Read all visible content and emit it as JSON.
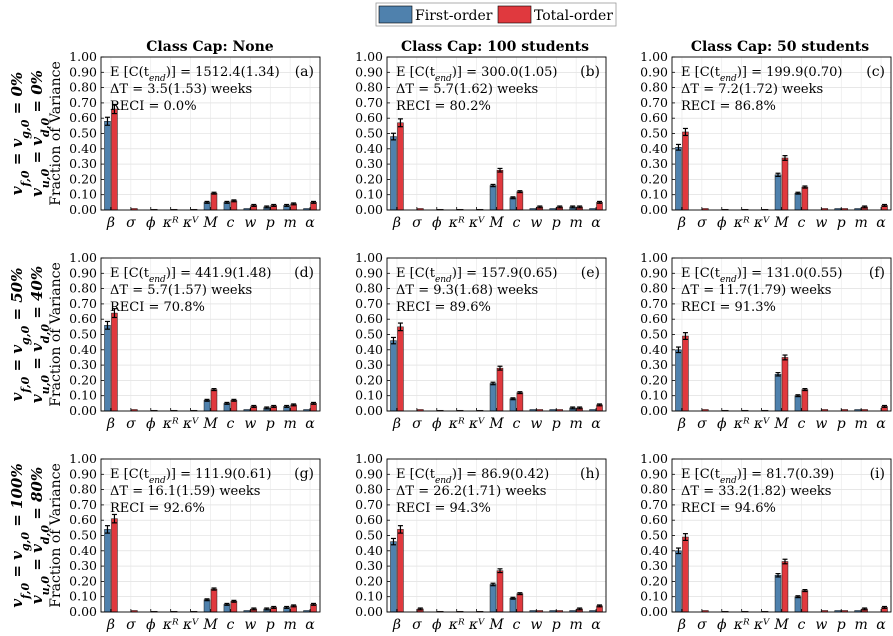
{
  "legend": {
    "placement": "top-center",
    "entries": [
      {
        "label": "First-order",
        "color": "#4f81ad"
      },
      {
        "label": "Total-order",
        "color": "#e0393e"
      }
    ]
  },
  "columns": [
    "Class Cap: None",
    "Class Cap: 100 students",
    "Class Cap: 50 students"
  ],
  "rows": [
    {
      "line1": "v_{f,0} = v_{g,0} = 0%",
      "line2": "v_{u,0} = v_{d,0} = 0%"
    },
    {
      "line1": "v_{f,0} = v_{g,0} = 50%",
      "line2": "v_{u,0} = v_{d,0} = 40%"
    },
    {
      "line1": "v_{f,0} = v_{g,0} = 100%",
      "line2": "v_{u,0} = v_{d,0} = 80%"
    }
  ],
  "ylabel": "Fraction of Variance",
  "yticks": [
    "0.00",
    "0.10",
    "0.20",
    "0.30",
    "0.40",
    "0.50",
    "0.60",
    "0.70",
    "0.80",
    "0.90",
    "1.00"
  ],
  "chart_data": {
    "type": "bar",
    "grid": true,
    "ylim": [
      0,
      1
    ],
    "categories": [
      "β",
      "σ",
      "ϕ",
      "κᴿ",
      "κⱽ",
      "M",
      "c",
      "w",
      "p",
      "m",
      "α"
    ],
    "panels": [
      {
        "tag": "(a)",
        "e_text": "E [C(t_end)] = 1512.4(1.34)",
        "dt_text": "ΔT = 3.5(1.53) weeks",
        "reci_text": "RECI = 0.0%",
        "first": [
          0.58,
          0,
          0,
          0,
          0,
          0.05,
          0.05,
          0.01,
          0.02,
          0.03,
          0.01
        ],
        "total": [
          0.66,
          0.01,
          0.005,
          0.005,
          0.005,
          0.11,
          0.06,
          0.03,
          0.03,
          0.04,
          0.05
        ]
      },
      {
        "tag": "(b)",
        "e_text": "E [C(t_end)] = 300.0(1.05)",
        "dt_text": "ΔT = 5.7(1.62) weeks",
        "reci_text": "RECI = 80.2%",
        "first": [
          0.48,
          0,
          0,
          0,
          0,
          0.16,
          0.08,
          0.01,
          0.01,
          0.02,
          0.01
        ],
        "total": [
          0.57,
          0.01,
          0.005,
          0.005,
          0.005,
          0.26,
          0.12,
          0.02,
          0.02,
          0.02,
          0.05
        ]
      },
      {
        "tag": "(c)",
        "e_text": "E [C(t_end)] = 199.9(0.70)",
        "dt_text": "ΔT = 7.2(1.72) weeks",
        "reci_text": "RECI = 86.8%",
        "first": [
          0.41,
          0,
          0,
          0,
          0,
          0.23,
          0.11,
          0,
          0.01,
          0.01,
          0
        ],
        "total": [
          0.51,
          0.01,
          0.005,
          0.005,
          0.005,
          0.34,
          0.15,
          0.01,
          0.01,
          0.02,
          0.03
        ]
      },
      {
        "tag": "(d)",
        "e_text": "E [C(t_end)] = 441.9(1.48)",
        "dt_text": "ΔT = 5.7(1.57) weeks",
        "reci_text": "RECI = 70.8%",
        "first": [
          0.56,
          0,
          0,
          0,
          0,
          0.07,
          0.05,
          0.01,
          0.02,
          0.03,
          0.01
        ],
        "total": [
          0.64,
          0.01,
          0.005,
          0.005,
          0.005,
          0.14,
          0.07,
          0.03,
          0.03,
          0.04,
          0.05
        ]
      },
      {
        "tag": "(e)",
        "e_text": "E [C(t_end)] = 157.9(0.65)",
        "dt_text": "ΔT = 9.3(1.68) weeks",
        "reci_text": "RECI = 89.6%",
        "first": [
          0.46,
          0,
          0,
          0,
          0,
          0.18,
          0.08,
          0.01,
          0.01,
          0.02,
          0.01
        ],
        "total": [
          0.55,
          0.01,
          0.005,
          0.005,
          0.005,
          0.28,
          0.12,
          0.01,
          0.01,
          0.02,
          0.04
        ]
      },
      {
        "tag": "(f)",
        "e_text": "E [C(t_end)] = 131.0(0.55)",
        "dt_text": "ΔT = 11.7(1.79) weeks",
        "reci_text": "RECI = 91.3%",
        "first": [
          0.4,
          0,
          0,
          0,
          0,
          0.24,
          0.1,
          0,
          0,
          0.01,
          0
        ],
        "total": [
          0.49,
          0.01,
          0.005,
          0.005,
          0.005,
          0.35,
          0.14,
          0.01,
          0.01,
          0.01,
          0.03
        ]
      },
      {
        "tag": "(g)",
        "e_text": "E [C(t_end)] = 111.9(0.61)",
        "dt_text": "ΔT = 16.1(1.59) weeks",
        "reci_text": "RECI = 92.6%",
        "first": [
          0.54,
          0,
          0,
          0,
          0,
          0.08,
          0.05,
          0.01,
          0.02,
          0.03,
          0.01
        ],
        "total": [
          0.61,
          0.01,
          0.005,
          0.005,
          0.005,
          0.15,
          0.07,
          0.02,
          0.03,
          0.04,
          0.05
        ]
      },
      {
        "tag": "(h)",
        "e_text": "E [C(t_end)] = 86.9(0.42)",
        "dt_text": "ΔT = 26.2(1.71) weeks",
        "reci_text": "RECI = 94.3%",
        "first": [
          0.46,
          0,
          0,
          0,
          0,
          0.18,
          0.09,
          0.01,
          0.01,
          0.01,
          0.01
        ],
        "total": [
          0.54,
          0.02,
          0.005,
          0.005,
          0.005,
          0.27,
          0.12,
          0.01,
          0.01,
          0.02,
          0.04
        ]
      },
      {
        "tag": "(i)",
        "e_text": "E [C(t_end)] = 81.7(0.39)",
        "dt_text": "ΔT = 33.2(1.82) weeks",
        "reci_text": "RECI = 94.6%",
        "first": [
          0.4,
          0,
          0,
          0,
          0,
          0.24,
          0.1,
          0,
          0.01,
          0.01,
          0
        ],
        "total": [
          0.49,
          0.01,
          0.005,
          0.005,
          0.005,
          0.33,
          0.14,
          0.01,
          0.01,
          0.02,
          0.03
        ]
      }
    ]
  }
}
